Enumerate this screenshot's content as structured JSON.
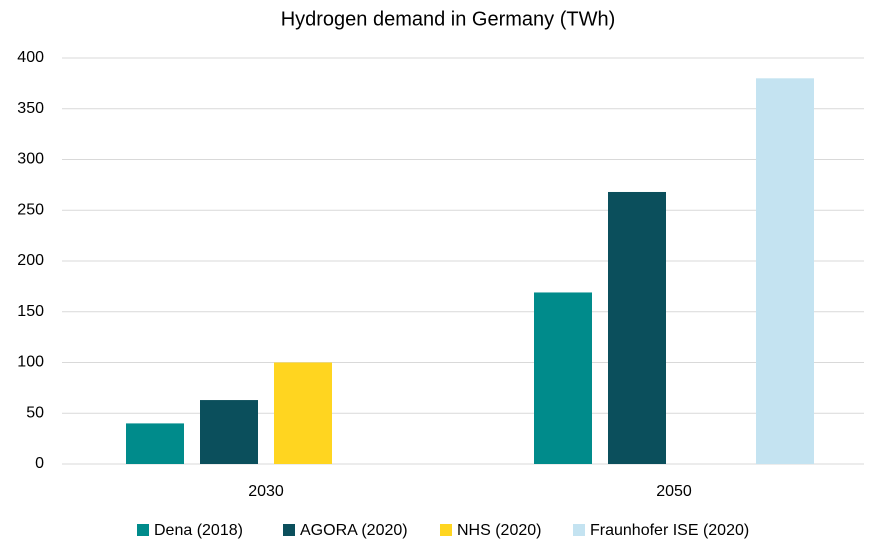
{
  "chart_data": {
    "type": "bar",
    "title": "Hydrogen demand in Germany (TWh)",
    "categories": [
      "2030",
      "2050"
    ],
    "series": [
      {
        "name": "Dena (2018)",
        "color": "#008b8b",
        "values": [
          40,
          169
        ]
      },
      {
        "name": "AGORA (2020)",
        "color": "#0b4f5c",
        "values": [
          63,
          268
        ]
      },
      {
        "name": "NHS (2020)",
        "color": "#ffd520",
        "values": [
          100,
          null
        ]
      },
      {
        "name": "Fraunhofer ISE (2020)",
        "color": "#c4e3f1",
        "values": [
          null,
          380
        ]
      }
    ],
    "ylim": [
      0,
      400
    ],
    "yticks": [
      0,
      50,
      100,
      150,
      200,
      250,
      300,
      350,
      400
    ],
    "grid": true,
    "legend": "bottom"
  }
}
